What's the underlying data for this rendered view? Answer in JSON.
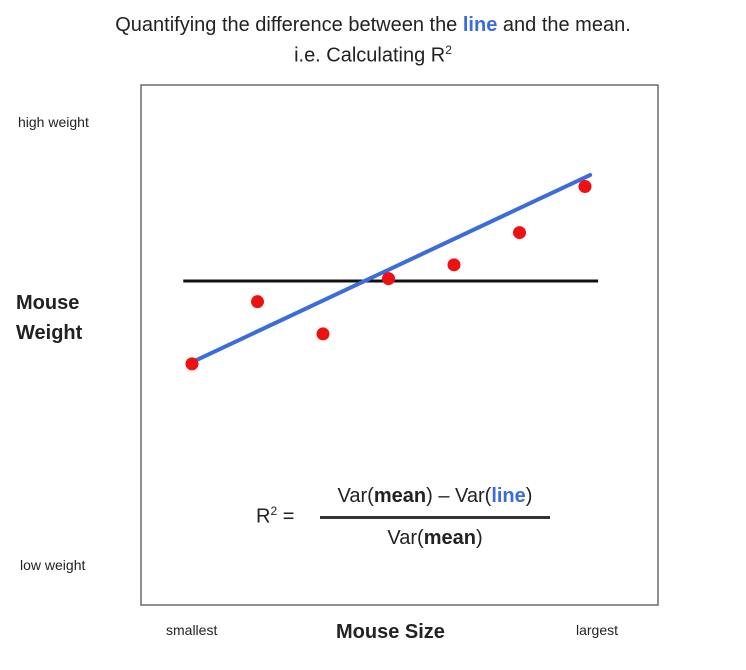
{
  "title": {
    "line1_prefix": "Quantifying the difference between the",
    "line1_highlight": "line",
    "line1_suffix": "and the mean.",
    "line2": "i.e. Calculating R",
    "line2_sup": "2"
  },
  "colors": {
    "points": "#ee1111",
    "fit_line": "#3b6cdb",
    "mean_line": "#111111",
    "highlight": "#3b6cdb"
  },
  "chart_data": {
    "type": "scatter",
    "title": "Quantifying the difference between the line and the mean. i.e. Calculating R2",
    "xlabel": "Mouse Size",
    "ylabel": "Mouse Weight",
    "x_tick_labels": [
      "smallest",
      "largest"
    ],
    "y_tick_labels": [
      "high weight",
      "low weight"
    ],
    "xlim": [
      0,
      10
    ],
    "ylim": [
      0,
      10
    ],
    "grid": false,
    "points": [
      {
        "x": 1.0,
        "y": 4.15
      },
      {
        "x": 2.5,
        "y": 5.5
      },
      {
        "x": 4.0,
        "y": 4.8
      },
      {
        "x": 5.5,
        "y": 6.0
      },
      {
        "x": 7.0,
        "y": 6.3
      },
      {
        "x": 8.5,
        "y": 7.0
      },
      {
        "x": 10.0,
        "y": 8.0
      }
    ],
    "mean_line": {
      "y": 5.95,
      "x_start": 0.8,
      "x_end": 10.3
    },
    "fit_line": {
      "x_start": 0.8,
      "y_start": 4.2,
      "x_end": 10.3,
      "y_end": 8.25
    }
  },
  "formula": {
    "lhs": "R",
    "lhs_sup": "2",
    "equals": "=",
    "num_a": "Var(",
    "num_b": "mean",
    "num_c": ") – Var(",
    "num_d": "line",
    "num_e": ")",
    "den_a": "Var(",
    "den_b": "mean",
    "den_c": ")"
  }
}
